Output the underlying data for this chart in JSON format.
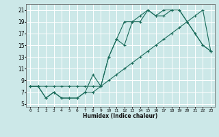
{
  "xlabel": "Humidex (Indice chaleur)",
  "background_color": "#cce8e8",
  "grid_color": "#ffffff",
  "line_color": "#1a6b5a",
  "xlim": [
    -0.5,
    23.5
  ],
  "ylim": [
    4.5,
    22
  ],
  "yticks": [
    5,
    7,
    9,
    11,
    13,
    15,
    17,
    19,
    21
  ],
  "xticks": [
    0,
    1,
    2,
    3,
    4,
    5,
    6,
    7,
    8,
    9,
    10,
    11,
    12,
    13,
    14,
    15,
    16,
    17,
    18,
    19,
    20,
    21,
    22,
    23
  ],
  "line1_x": [
    0,
    1,
    2,
    3,
    4,
    5,
    6,
    7,
    8,
    9,
    10,
    11,
    12,
    13,
    14,
    15,
    16,
    17,
    18,
    19,
    20,
    21,
    22,
    23
  ],
  "line1_y": [
    8,
    8,
    8,
    8,
    8,
    8,
    8,
    8,
    8,
    8,
    9,
    10,
    11,
    12,
    13,
    14,
    15,
    16,
    17,
    18,
    19,
    20,
    21,
    14
  ],
  "line2_x": [
    0,
    1,
    2,
    3,
    4,
    5,
    6,
    7,
    8,
    9,
    10,
    11,
    12,
    13,
    14,
    15,
    16,
    17,
    18,
    19,
    20,
    21,
    22,
    23
  ],
  "line2_y": [
    8,
    8,
    6,
    7,
    6,
    6,
    6,
    7,
    10,
    8,
    13,
    16,
    15,
    19,
    19,
    21,
    20,
    20,
    21,
    21,
    19,
    17,
    15,
    14
  ],
  "line3_x": [
    0,
    1,
    2,
    3,
    4,
    5,
    6,
    7,
    8,
    9,
    10,
    11,
    12,
    13,
    14,
    15,
    16,
    17,
    18,
    19,
    20,
    21,
    22,
    23
  ],
  "line3_y": [
    8,
    8,
    6,
    7,
    6,
    6,
    6,
    7,
    7,
    8,
    13,
    16,
    19,
    19,
    20,
    21,
    20,
    21,
    21,
    21,
    19,
    17,
    15,
    14
  ]
}
